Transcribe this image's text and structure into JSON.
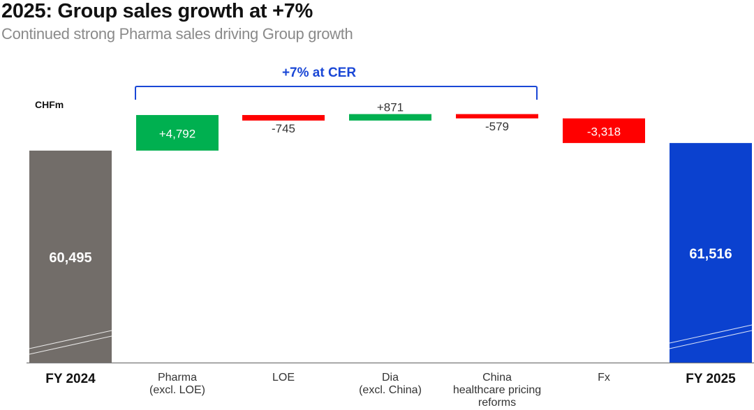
{
  "header": {
    "title": "2025: Group sales growth at +7%",
    "subtitle": "Continued strong Pharma sales driving Group growth"
  },
  "chart_data": {
    "type": "waterfall",
    "unit_label": "CHFm",
    "bracket_label": "+7% at CER",
    "categories": [
      {
        "label": [
          "FY 2024"
        ],
        "kind": "total",
        "value": 60495,
        "value_label": "60,495",
        "color": "#726d69"
      },
      {
        "label": [
          "Pharma",
          "(excl. LOE)"
        ],
        "kind": "delta",
        "value": 4792,
        "value_label": "+4,792",
        "color": "#00b050"
      },
      {
        "label": [
          "LOE"
        ],
        "kind": "delta",
        "value": -745,
        "value_label": "-745",
        "color": "#ff0000"
      },
      {
        "label": [
          "Dia",
          "(excl. China)"
        ],
        "kind": "delta",
        "value": 871,
        "value_label": "+871",
        "color": "#00b050"
      },
      {
        "label": [
          "China",
          "healthcare pricing",
          "reforms"
        ],
        "kind": "delta",
        "value": -579,
        "value_label": "-579",
        "color": "#ff0000"
      },
      {
        "label": [
          "Fx"
        ],
        "kind": "delta",
        "value": -3318,
        "value_label": "-3,318",
        "color": "#ff0000"
      },
      {
        "label": [
          "FY 2025"
        ],
        "kind": "total",
        "value": 61516,
        "value_label": "61,516",
        "color": "#0b41cf"
      }
    ],
    "axis_break": true,
    "accent_color": "#1a47d6"
  }
}
